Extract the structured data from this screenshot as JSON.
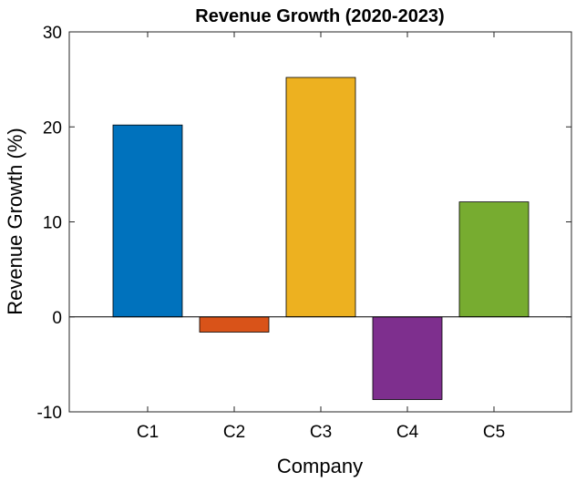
{
  "chart_data": {
    "type": "bar",
    "title": "Revenue Growth (2020-2023)",
    "xlabel": "Company",
    "ylabel": "Revenue Growth (%)",
    "categories": [
      "C1",
      "C2",
      "C3",
      "C4",
      "C5"
    ],
    "values": [
      20.2,
      -1.6,
      25.2,
      -8.7,
      12.1
    ],
    "bar_colors": [
      "#0072BD",
      "#D95319",
      "#EDB120",
      "#7E2F8E",
      "#77AC30"
    ],
    "ylim": [
      -10,
      30
    ],
    "yticks": [
      -10,
      0,
      10,
      20,
      30
    ],
    "ytick_labels": [
      "-10",
      "0",
      "10",
      "20",
      "30"
    ],
    "grid": false,
    "legend": "none",
    "baseline": 0
  }
}
